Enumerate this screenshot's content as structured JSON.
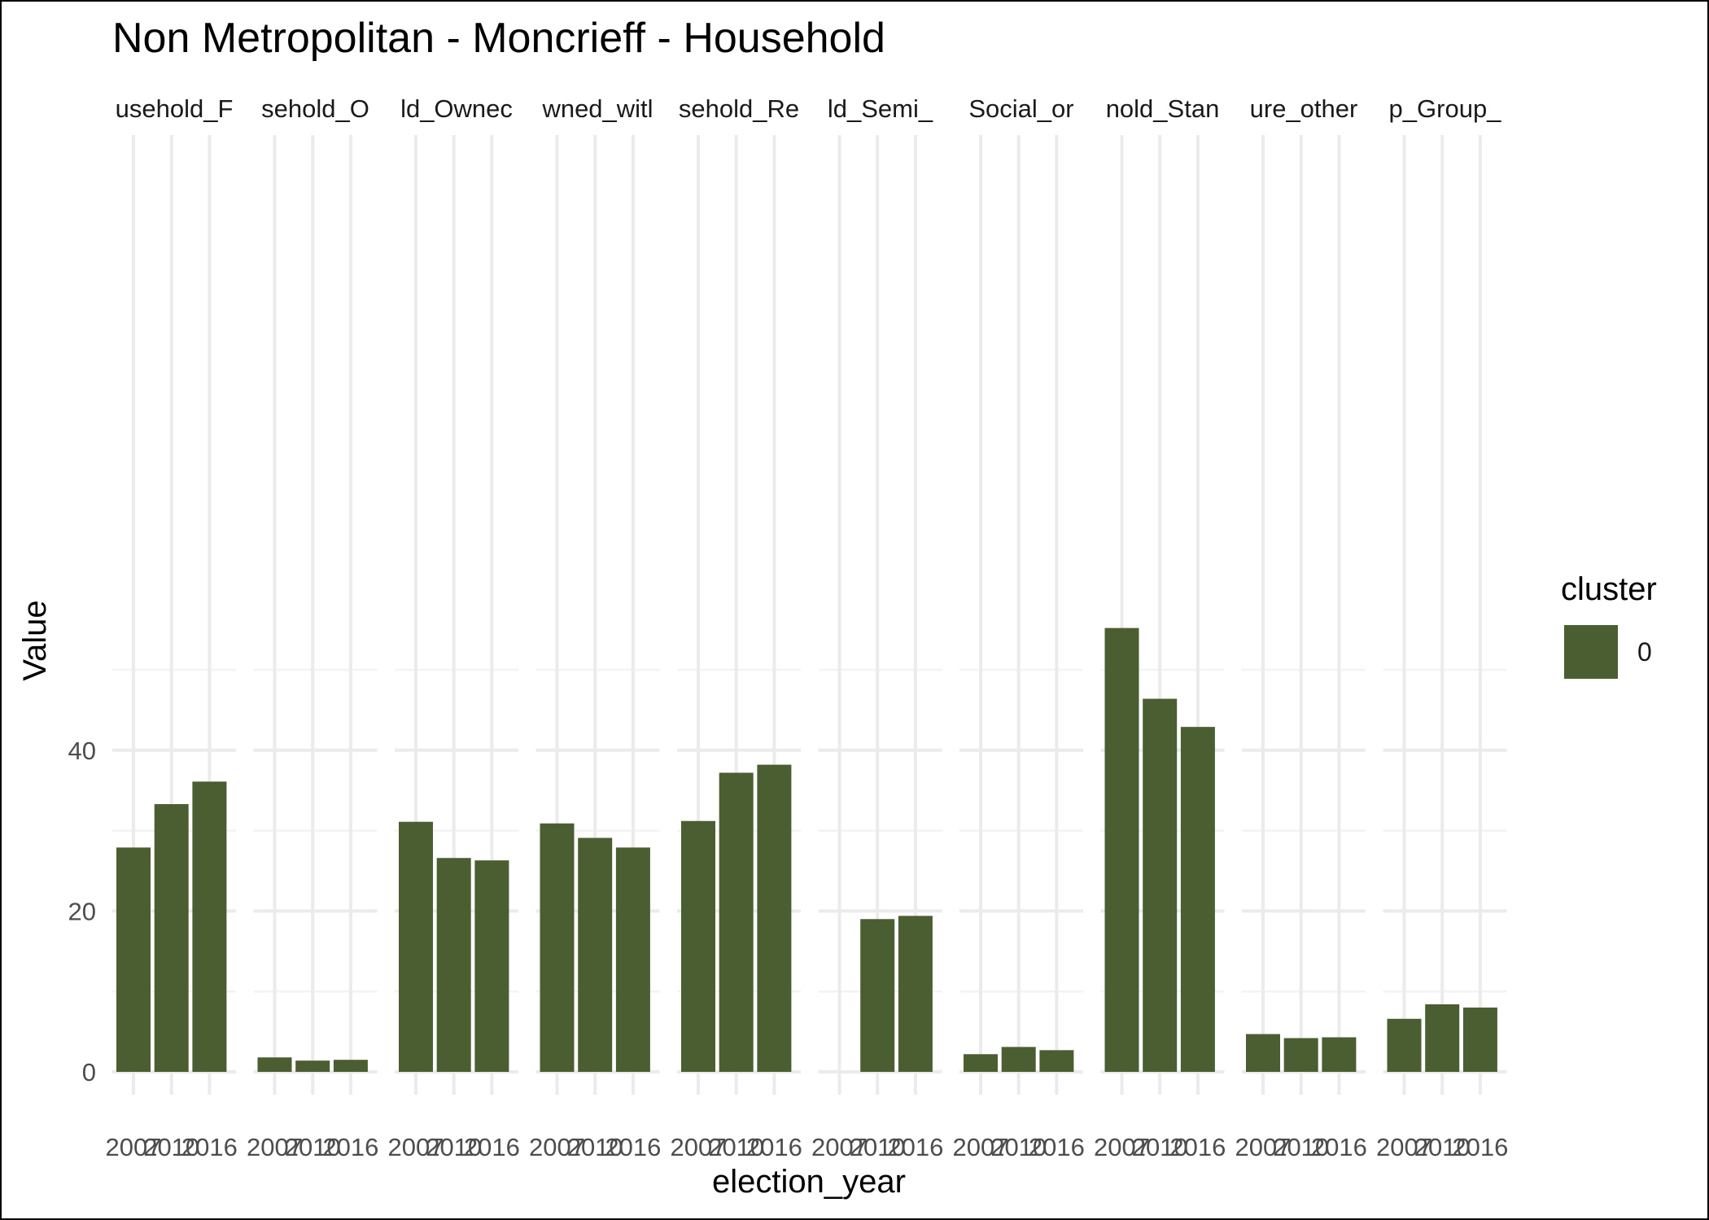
{
  "chart_data": {
    "type": "bar",
    "title": "Non Metropolitan - Moncrieff - Household",
    "xlabel": "election_year",
    "ylabel": "Value",
    "ylim": [
      -3,
      58.5
    ],
    "y_ticks": [
      0,
      20,
      40
    ],
    "x_tick_labels": [
      "2007",
      "2010",
      "2016"
    ],
    "grid": true,
    "legend": {
      "title": "cluster",
      "placement": "right",
      "entries": [
        {
          "label": "0",
          "color": "#4a5e31"
        }
      ]
    },
    "bar_color": "#4a5e31",
    "facets": [
      {
        "label": "usehold_F",
        "values": [
          27.9,
          33.3,
          36.1
        ]
      },
      {
        "label": "sehold_O",
        "values": [
          1.8,
          1.4,
          1.5
        ]
      },
      {
        "label": "ld_Ownec",
        "values": [
          31.1,
          26.6,
          26.3
        ]
      },
      {
        "label": "wned_witl",
        "values": [
          30.9,
          29.1,
          27.9
        ]
      },
      {
        "label": "sehold_Re",
        "values": [
          31.2,
          37.2,
          38.2
        ]
      },
      {
        "label": "ld_Semi_",
        "values": [
          null,
          19.0,
          19.4
        ]
      },
      {
        "label": "Social_or",
        "values": [
          2.2,
          3.1,
          2.7
        ]
      },
      {
        "label": "nold_Stan",
        "values": [
          55.2,
          46.4,
          42.9
        ]
      },
      {
        "label": "ure_other",
        "values": [
          4.7,
          4.2,
          4.3
        ]
      },
      {
        "label": "p_Group_",
        "values": [
          6.6,
          8.4,
          8.0
        ]
      }
    ]
  }
}
